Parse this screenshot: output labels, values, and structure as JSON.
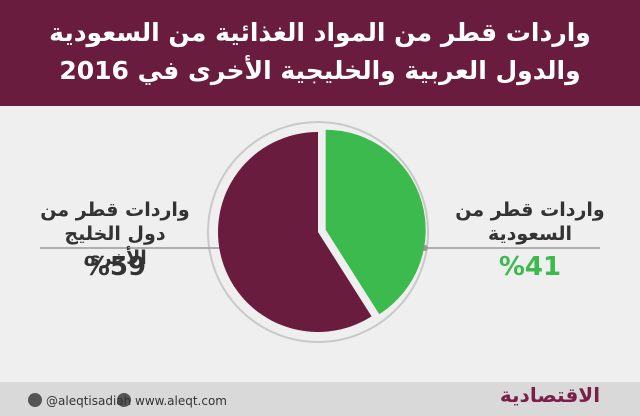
{
  "chart_data": {
    "type": "pie",
    "title": "واردات قطر من المواد الغذائية من السعودية والدول العربية والخليجية الأخرى في 2016",
    "categories": [
      "واردات قطر من السعودية",
      "واردات قطر من دول الخليج الأخرى"
    ],
    "values": [
      41,
      59
    ],
    "value_labels": [
      "%41",
      "%59"
    ],
    "colors": [
      "#3dba4e",
      "#6a1c3f"
    ]
  },
  "footer": {
    "twitter": "@aleqtisadiah",
    "website": "www.aleqt.com",
    "logo": "الاقتصادية"
  }
}
